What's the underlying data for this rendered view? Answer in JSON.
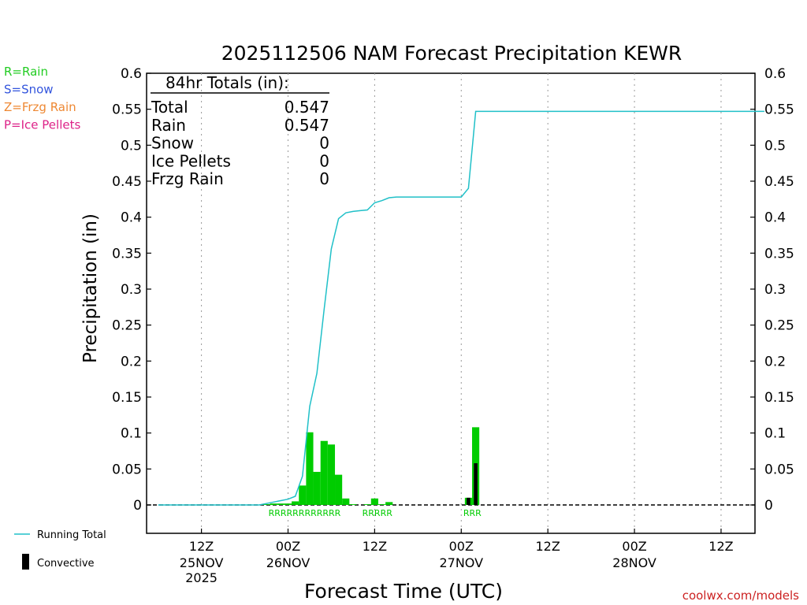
{
  "chart_data": {
    "type": "bar",
    "title": "2025112506 NAM Forecast Precipitation KEWR",
    "xlabel": "Forecast Time (UTC)",
    "ylabel": "Precipitation (in)",
    "ylim": [
      0,
      0.6
    ],
    "y_ticks": [
      "0",
      "0.05",
      "0.1",
      "0.15",
      "0.2",
      "0.25",
      "0.3",
      "0.35",
      "0.4",
      "0.45",
      "0.5",
      "0.55",
      "0.6"
    ],
    "x_range_hours": [
      -1.6,
      82.7
    ],
    "x_ticks": [
      {
        "hour": 6,
        "line1": "12Z",
        "line2": "25NOV",
        "line3": "2025"
      },
      {
        "hour": 18,
        "line1": "00Z",
        "line2": "26NOV",
        "line3": ""
      },
      {
        "hour": 30,
        "line1": "12Z",
        "line2": "",
        "line3": ""
      },
      {
        "hour": 42,
        "line1": "00Z",
        "line2": "27NOV",
        "line3": ""
      },
      {
        "hour": 54,
        "line1": "12Z",
        "line2": "",
        "line3": ""
      },
      {
        "hour": 66,
        "line1": "00Z",
        "line2": "28NOV",
        "line3": ""
      },
      {
        "hour": 78,
        "line1": "12Z",
        "line2": "",
        "line3": ""
      }
    ],
    "grid": true,
    "legend": "left",
    "series": [
      {
        "name": "Running Total",
        "type": "line",
        "color": "#20c0c8",
        "x": [
          0,
          5,
          10,
          14,
          15,
          16,
          17,
          18,
          19,
          20,
          21,
          22,
          23,
          24,
          25,
          26,
          27,
          28,
          29,
          30,
          31,
          32,
          33,
          36,
          39,
          42,
          43,
          44,
          45,
          60,
          84
        ],
        "y": [
          0,
          0,
          0,
          0,
          0.002,
          0.004,
          0.006,
          0.008,
          0.012,
          0.04,
          0.137,
          0.183,
          0.272,
          0.356,
          0.398,
          0.406,
          0.408,
          0.409,
          0.41,
          0.42,
          0.423,
          0.427,
          0.428,
          0.428,
          0.428,
          0.428,
          0.44,
          0.547,
          0.547,
          0.547,
          0.547
        ]
      },
      {
        "name": "hourly-precip",
        "type": "bar",
        "color": "#00cc00",
        "x": [
          15,
          16,
          17,
          18,
          19,
          20,
          21,
          22,
          23,
          24,
          25,
          26,
          27,
          29,
          30,
          31,
          32,
          43,
          44
        ],
        "y": [
          0.001,
          0.002,
          0.002,
          0.002,
          0.005,
          0.027,
          0.101,
          0.046,
          0.089,
          0.084,
          0.042,
          0.009,
          0.001,
          0.001,
          0.009,
          0.001,
          0.004,
          0.01,
          0.108
        ]
      },
      {
        "name": "Convective",
        "type": "bar",
        "color": "#000000",
        "x": [
          43,
          44
        ],
        "y": [
          0.01,
          0.058
        ]
      }
    ],
    "ptype_labels": [
      {
        "hour": 16,
        "text": "RRRRRRRRRRRR"
      },
      {
        "hour": 29,
        "text": "RRRRR"
      },
      {
        "hour": 43,
        "text": "RRR"
      }
    ]
  },
  "totals_box": {
    "header": "84hr Totals (in):",
    "rows": [
      {
        "label": "Total",
        "value": "0.547"
      },
      {
        "label": "Rain",
        "value": "0.547"
      },
      {
        "label": "Snow",
        "value": "0"
      },
      {
        "label": "Ice Pellets",
        "value": "0"
      },
      {
        "label": "Frzg Rain",
        "value": "0"
      }
    ]
  },
  "ptype_key": [
    {
      "text": "R=Rain",
      "color": "#22cc22"
    },
    {
      "text": "S=Snow",
      "color": "#3355dd"
    },
    {
      "text": "Z=Frzg Rain",
      "color": "#ee8833"
    },
    {
      "text": "P=Ice Pellets",
      "color": "#dd2288"
    }
  ],
  "legend_items": {
    "running_total": "Running Total",
    "convective": "Convective"
  },
  "colors": {
    "rain": "#00cc00",
    "running_total": "#20c0c8",
    "convective": "#000000",
    "credit": "#cc2222"
  },
  "credit": "coolwx.com/models"
}
